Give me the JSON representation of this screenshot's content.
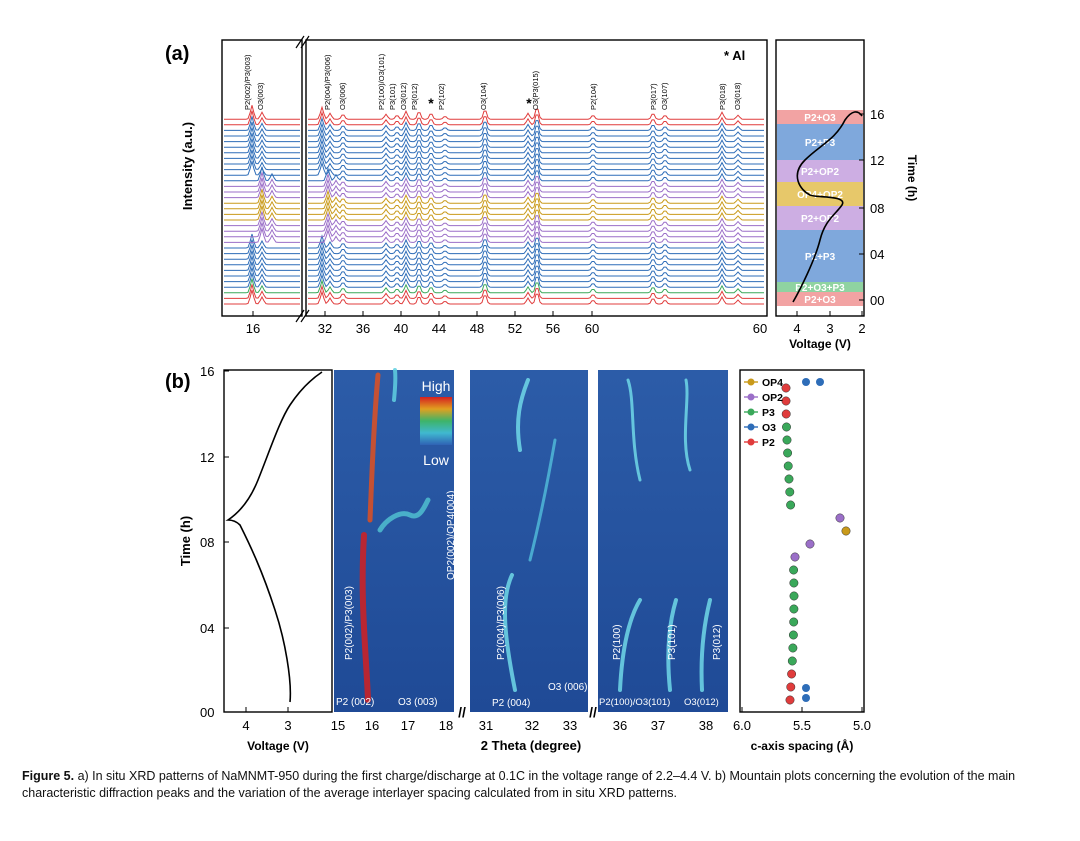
{
  "panel_a": {
    "label": "(a)",
    "al_note": "* Al",
    "ylabel": "Intensity (a.u.)",
    "x_ticks": [
      "16",
      "32",
      "36",
      "40",
      "44",
      "48",
      "52",
      "56",
      "60"
    ],
    "peaks": [
      "P2(002)/P3(003)",
      "O3(003)",
      "P2(004)/P3(006)",
      "O3(006)",
      "P2(100)/O3(101)",
      "P3(101)",
      "O3(012)",
      "P3(012)",
      "*",
      "P2(102)",
      "O3(104)",
      "*",
      "O3(P3(015)",
      "P2(104)",
      "P3(017)",
      "O3(107)",
      "P3(018)",
      "O3(018)"
    ],
    "phases": [
      "P2+O3",
      "P2+P3",
      "P2+OP2",
      "OP4+OP2",
      "P2+OP2",
      "P2+P3",
      "P2+O3+P3",
      "P2+O3"
    ],
    "time_label": "Time (h)",
    "time_ticks": [
      "00",
      "04",
      "08",
      "12",
      "16"
    ],
    "voltage_label": "Voltage (V)",
    "voltage_ticks": [
      "4",
      "3",
      "2"
    ],
    "colors": {
      "red": "#e03c3c",
      "blue": "#2e6db8",
      "purple": "#9b6fc8",
      "gold": "#c99a1a",
      "green": "#3aa85a"
    }
  },
  "panel_b": {
    "label": "(b)",
    "time_label": "Time (h)",
    "time_ticks": [
      "00",
      "04",
      "08",
      "12",
      "16"
    ],
    "voltage_label": "Voltage (V)",
    "voltage_ticks": [
      "4",
      "3"
    ],
    "xlabel": "2 Theta (degree)",
    "map1_ticks": [
      "15",
      "16",
      "17",
      "18"
    ],
    "map2_ticks": [
      "31",
      "32",
      "33"
    ],
    "map3_ticks": [
      "36",
      "37",
      "38"
    ],
    "legend_high": "High",
    "legend_low": "Low",
    "map_labels": [
      "P2(002)/P3(003)",
      "OP2(002)/OP4(004)",
      "P2 (002)",
      "O3 (003)",
      "P2(004)/P3(006)",
      "P2 (004)",
      "O3 (006)",
      "P2(100)",
      "P3(101)",
      "P3(012)",
      "P2(100)/O3(101)",
      "O3(012)"
    ],
    "c_axis_label": "c-axis spacing (Å)",
    "c_axis_ticks": [
      "6.0",
      "5.5",
      "5.0"
    ],
    "legend": [
      "OP4",
      "OP2",
      "P3",
      "O3",
      "P2"
    ]
  },
  "caption": {
    "figure": "Figure 5.",
    "text": " a) In situ XRD patterns of NaMNMT-950 during the first charge/discharge at 0.1C in the voltage range of 2.2–4.4 V. b) Mountain plots concerning the evolution of the main characteristic diffraction peaks and the variation of the average interlayer spacing calculated from in situ XRD patterns."
  }
}
